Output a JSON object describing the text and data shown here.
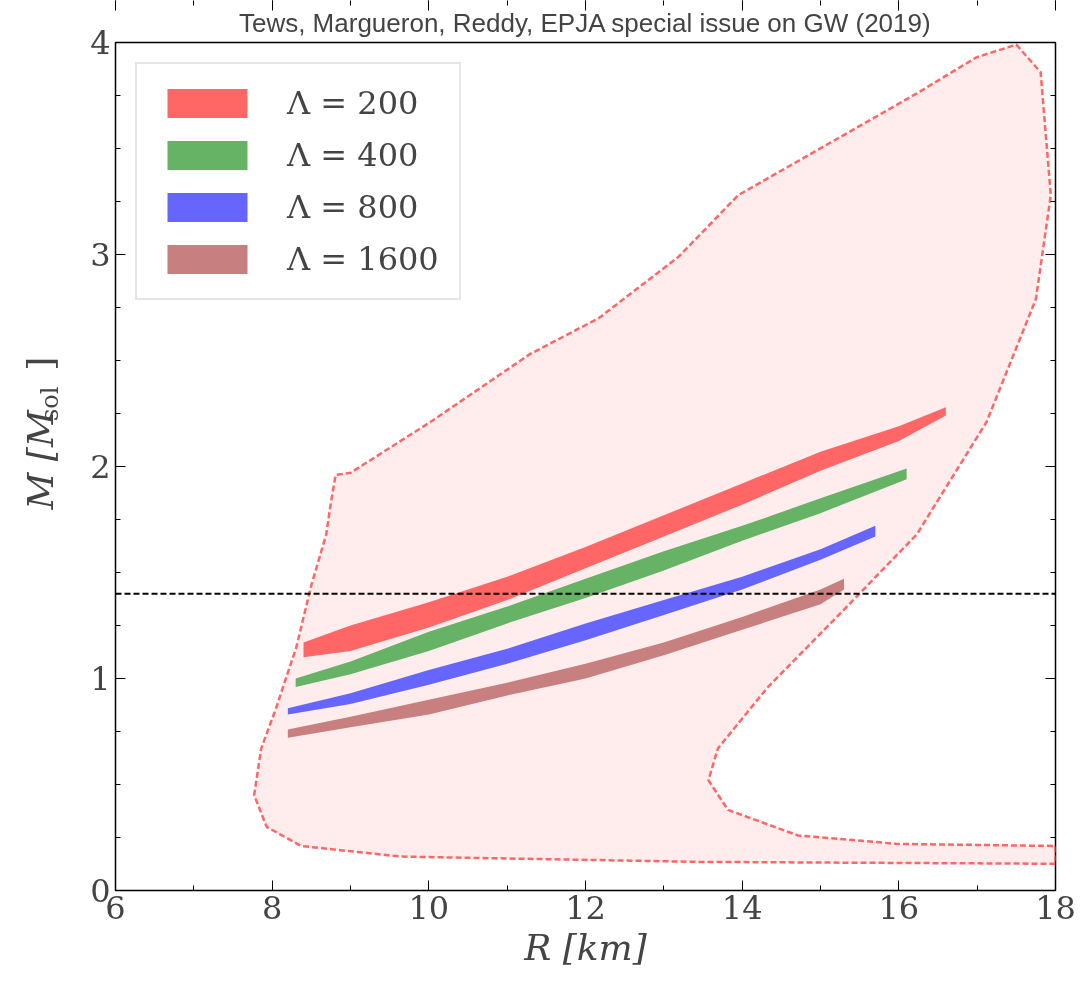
{
  "chart_data": {
    "type": "area",
    "title": "Tews, Margueron, Reddy, EPJA special issue on GW (2019)",
    "xlabel": "R [km]",
    "ylabel": "M [M$_{sol}$]",
    "xlim": [
      6,
      18
    ],
    "xticks": [
      6,
      8,
      10,
      12,
      14,
      16,
      18
    ],
    "ylim": [
      0,
      4
    ],
    "yticks": [
      0,
      1,
      2,
      3,
      4
    ],
    "grid": false,
    "legend": "top left",
    "ref_lines": [
      {
        "axis": "y",
        "value": 1.4,
        "color": "#000000",
        "line_style": "dashed"
      }
    ],
    "series": [
      {
        "color": "#ff6666",
        "line_style": "dashed",
        "x": [
          18,
          13.44,
          9.64,
          8.37,
          7.93,
          7.77,
          7.86,
          8.05,
          8.31,
          8.5,
          8.69,
          8.75,
          8.81,
          9.0,
          10.02,
          11.29,
          12.17,
          13.19,
          13.95,
          15.09,
          16.23,
          16.99,
          17.5,
          17.81,
          17.94,
          17.75,
          17.12,
          16.23,
          15.34,
          14.33,
          13.69,
          13.57,
          13.82,
          14.71,
          15.97,
          18
        ],
        "values": [
          0.126,
          0.135,
          0.16,
          0.21,
          0.3,
          0.45,
          0.67,
          0.86,
          1.15,
          1.44,
          1.68,
          1.83,
          1.96,
          1.97,
          2.21,
          2.53,
          2.7,
          2.99,
          3.28,
          3.52,
          3.76,
          3.93,
          3.99,
          3.86,
          3.28,
          2.79,
          2.21,
          1.68,
          1.34,
          0.96,
          0.67,
          0.52,
          0.38,
          0.26,
          0.22,
          0.21
        ]
      },
      {
        "name": "Λ = 200",
        "type": "line",
        "color": "#ff6666",
        "x": [
          8.4,
          9,
          10,
          11,
          12,
          13,
          14,
          15,
          16,
          16.6
        ],
        "lower": [
          1.1,
          1.13,
          1.24,
          1.37,
          1.52,
          1.67,
          1.82,
          1.98,
          2.12,
          2.24
        ],
        "upper": [
          1.17,
          1.25,
          1.36,
          1.48,
          1.62,
          1.77,
          1.92,
          2.07,
          2.19,
          2.28
        ],
        "values": [
          null,
          null,
          null,
          null,
          null,
          null,
          null,
          null,
          null,
          null
        ]
      },
      {
        "name": "Λ = 400",
        "type": "line",
        "color": "#66b366",
        "x": [
          8.3,
          9,
          10,
          11,
          12,
          13,
          14,
          15,
          16.1
        ],
        "lower": [
          0.96,
          1.02,
          1.13,
          1.26,
          1.38,
          1.51,
          1.65,
          1.78,
          1.94
        ],
        "upper": [
          1.0,
          1.08,
          1.22,
          1.34,
          1.47,
          1.6,
          1.72,
          1.85,
          1.99
        ],
        "values": [
          null,
          null,
          null,
          null,
          null,
          null,
          null,
          null,
          null
        ]
      },
      {
        "name": "Λ = 800",
        "type": "line",
        "color": "#6666ff",
        "x": [
          8.2,
          9,
          10,
          11,
          12,
          13,
          14,
          15,
          15.7
        ],
        "lower": [
          0.83,
          0.88,
          0.97,
          1.07,
          1.18,
          1.3,
          1.42,
          1.56,
          1.67
        ],
        "upper": [
          0.86,
          0.93,
          1.04,
          1.14,
          1.26,
          1.37,
          1.48,
          1.61,
          1.72
        ],
        "values": [
          null,
          null,
          null,
          null,
          null,
          null,
          null,
          null,
          null
        ]
      },
      {
        "name": "Λ = 1600",
        "type": "line",
        "color": "#c77f7f",
        "x": [
          8.2,
          9,
          10,
          11,
          12,
          13,
          14,
          15,
          15.3
        ],
        "lower": [
          0.72,
          0.77,
          0.83,
          0.92,
          1.0,
          1.11,
          1.23,
          1.35,
          1.42
        ],
        "upper": [
          0.76,
          0.82,
          0.9,
          0.98,
          1.07,
          1.17,
          1.29,
          1.42,
          1.47
        ],
        "values": [
          null,
          null,
          null,
          null,
          null,
          null,
          null,
          null,
          null
        ]
      }
    ]
  }
}
